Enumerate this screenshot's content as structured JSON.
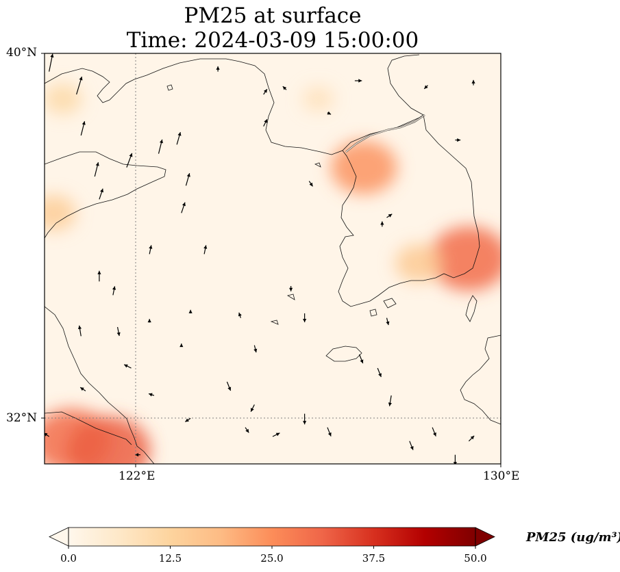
{
  "title": {
    "line1": "PM25 at surface",
    "line2": "Time: 2024-03-09 15:00:00"
  },
  "axes": {
    "lat_labels": [
      "40°N",
      "32°N"
    ],
    "lon_labels": [
      "122°E",
      "130°E"
    ]
  },
  "colorbar": {
    "label": "PM25 (ug/m³)",
    "min": 0.0,
    "max": 50.0,
    "ticks": [
      "0.0",
      "12.5",
      "25.0",
      "37.5",
      "50.0"
    ],
    "colormap": "OrRd",
    "extend": "both"
  },
  "map": {
    "extent": {
      "lon_min": 120,
      "lon_max": 130,
      "lat_min": 31,
      "lat_max": 40
    },
    "gridlines": {
      "lon": [
        122
      ],
      "lat": [
        32
      ],
      "style": "dotted",
      "color": "#808080"
    },
    "pm25_hotspots": [
      {
        "lon": 127.0,
        "lat": 37.5,
        "value": 24
      },
      {
        "lon": 129.3,
        "lat": 35.5,
        "value": 30
      },
      {
        "lon": 120.6,
        "lat": 31.5,
        "value": 30
      },
      {
        "lon": 121.4,
        "lat": 31.3,
        "value": 32
      },
      {
        "lon": 128.2,
        "lat": 35.4,
        "value": 15
      },
      {
        "lon": 120.2,
        "lat": 36.5,
        "value": 14
      },
      {
        "lon": 120.4,
        "lat": 39.0,
        "value": 11
      },
      {
        "lon": 126.0,
        "lat": 39.0,
        "value": 8
      }
    ],
    "wind_vectors": [
      {
        "lon": 120.1,
        "lat": 39.6,
        "u": 0.2,
        "v": 1.0
      },
      {
        "lon": 120.7,
        "lat": 39.1,
        "u": 0.3,
        "v": 1.0
      },
      {
        "lon": 120.8,
        "lat": 38.2,
        "u": 0.2,
        "v": 0.8
      },
      {
        "lon": 121.1,
        "lat": 37.3,
        "u": 0.2,
        "v": 0.8
      },
      {
        "lon": 121.8,
        "lat": 37.5,
        "u": 0.3,
        "v": 0.8
      },
      {
        "lon": 122.5,
        "lat": 37.8,
        "u": 0.2,
        "v": 0.8
      },
      {
        "lon": 122.9,
        "lat": 38.0,
        "u": 0.2,
        "v": 0.7
      },
      {
        "lon": 121.2,
        "lat": 36.8,
        "u": 0.2,
        "v": 0.6
      },
      {
        "lon": 123.1,
        "lat": 37.1,
        "u": 0.2,
        "v": 0.7
      },
      {
        "lon": 123.0,
        "lat": 36.5,
        "u": 0.2,
        "v": 0.6
      },
      {
        "lon": 123.5,
        "lat": 35.6,
        "u": 0.1,
        "v": 0.5
      },
      {
        "lon": 122.3,
        "lat": 35.6,
        "u": 0.1,
        "v": 0.5
      },
      {
        "lon": 121.2,
        "lat": 35.0,
        "u": 0.0,
        "v": 0.6
      },
      {
        "lon": 121.5,
        "lat": 34.7,
        "u": 0.1,
        "v": 0.5
      },
      {
        "lon": 121.6,
        "lat": 34.0,
        "u": 0.1,
        "v": -0.5
      },
      {
        "lon": 120.8,
        "lat": 33.8,
        "u": -0.1,
        "v": 0.6
      },
      {
        "lon": 121.9,
        "lat": 33.1,
        "u": -0.4,
        "v": 0.2
      },
      {
        "lon": 122.4,
        "lat": 32.5,
        "u": -0.3,
        "v": 0.1
      },
      {
        "lon": 123.2,
        "lat": 32.0,
        "u": -0.3,
        "v": -0.2
      },
      {
        "lon": 124.0,
        "lat": 32.8,
        "u": 0.2,
        "v": -0.5
      },
      {
        "lon": 124.6,
        "lat": 32.3,
        "u": -0.2,
        "v": -0.4
      },
      {
        "lon": 124.7,
        "lat": 31.0,
        "u": 0.0,
        "v": -0.5
      },
      {
        "lon": 125.0,
        "lat": 31.6,
        "u": 0.4,
        "v": 0.2
      },
      {
        "lon": 125.7,
        "lat": 32.1,
        "u": 0.0,
        "v": -0.6
      },
      {
        "lon": 126.2,
        "lat": 31.8,
        "u": 0.2,
        "v": -0.5
      },
      {
        "lon": 127.6,
        "lat": 32.5,
        "u": -0.1,
        "v": -0.6
      },
      {
        "lon": 128.0,
        "lat": 31.5,
        "u": 0.2,
        "v": -0.5
      },
      {
        "lon": 128.5,
        "lat": 31.8,
        "u": 0.2,
        "v": -0.5
      },
      {
        "lon": 129.0,
        "lat": 31.2,
        "u": 0.0,
        "v": -0.6
      },
      {
        "lon": 129.3,
        "lat": 31.5,
        "u": 0.3,
        "v": 0.3
      },
      {
        "lon": 127.3,
        "lat": 33.1,
        "u": 0.2,
        "v": -0.5
      },
      {
        "lon": 126.9,
        "lat": 33.4,
        "u": 0.2,
        "v": -0.5
      },
      {
        "lon": 127.5,
        "lat": 34.2,
        "u": 0.1,
        "v": -0.4
      },
      {
        "lon": 127.4,
        "lat": 36.2,
        "u": 0.0,
        "v": 0.3
      },
      {
        "lon": 125.7,
        "lat": 34.3,
        "u": 0.0,
        "v": -0.5
      },
      {
        "lon": 125.4,
        "lat": 34.9,
        "u": 0.0,
        "v": -0.3
      },
      {
        "lon": 125.8,
        "lat": 37.2,
        "u": 0.2,
        "v": -0.3
      },
      {
        "lon": 126.2,
        "lat": 38.7,
        "u": 0.2,
        "v": -0.1
      },
      {
        "lon": 127.5,
        "lat": 36.4,
        "u": 0.3,
        "v": 0.2
      },
      {
        "lon": 129.0,
        "lat": 38.1,
        "u": 0.3,
        "v": 0.0
      },
      {
        "lon": 129.4,
        "lat": 39.3,
        "u": 0.0,
        "v": 0.3
      },
      {
        "lon": 128.4,
        "lat": 39.3,
        "u": -0.2,
        "v": -0.2
      },
      {
        "lon": 124.8,
        "lat": 38.4,
        "u": 0.2,
        "v": 0.4
      },
      {
        "lon": 124.8,
        "lat": 39.1,
        "u": 0.2,
        "v": 0.3
      },
      {
        "lon": 125.3,
        "lat": 39.2,
        "u": -0.2,
        "v": 0.2
      },
      {
        "lon": 126.8,
        "lat": 39.4,
        "u": 0.4,
        "v": 0.0
      },
      {
        "lon": 123.8,
        "lat": 39.6,
        "u": 0.0,
        "v": 0.3
      },
      {
        "lon": 123.2,
        "lat": 34.3,
        "u": 0.0,
        "v": 0.2
      },
      {
        "lon": 122.3,
        "lat": 34.1,
        "u": 0.0,
        "v": 0.2
      },
      {
        "lon": 124.3,
        "lat": 34.2,
        "u": -0.1,
        "v": 0.3
      },
      {
        "lon": 124.6,
        "lat": 33.6,
        "u": 0.1,
        "v": -0.4
      },
      {
        "lon": 123.0,
        "lat": 33.6,
        "u": 0.0,
        "v": 0.1
      },
      {
        "lon": 120.9,
        "lat": 32.6,
        "u": -0.3,
        "v": 0.2
      },
      {
        "lon": 120.1,
        "lat": 31.6,
        "u": -0.3,
        "v": 0.2
      },
      {
        "lon": 122.1,
        "lat": 31.2,
        "u": -0.3,
        "v": 0.0
      },
      {
        "lon": 124.4,
        "lat": 31.8,
        "u": 0.2,
        "v": -0.3
      }
    ]
  }
}
